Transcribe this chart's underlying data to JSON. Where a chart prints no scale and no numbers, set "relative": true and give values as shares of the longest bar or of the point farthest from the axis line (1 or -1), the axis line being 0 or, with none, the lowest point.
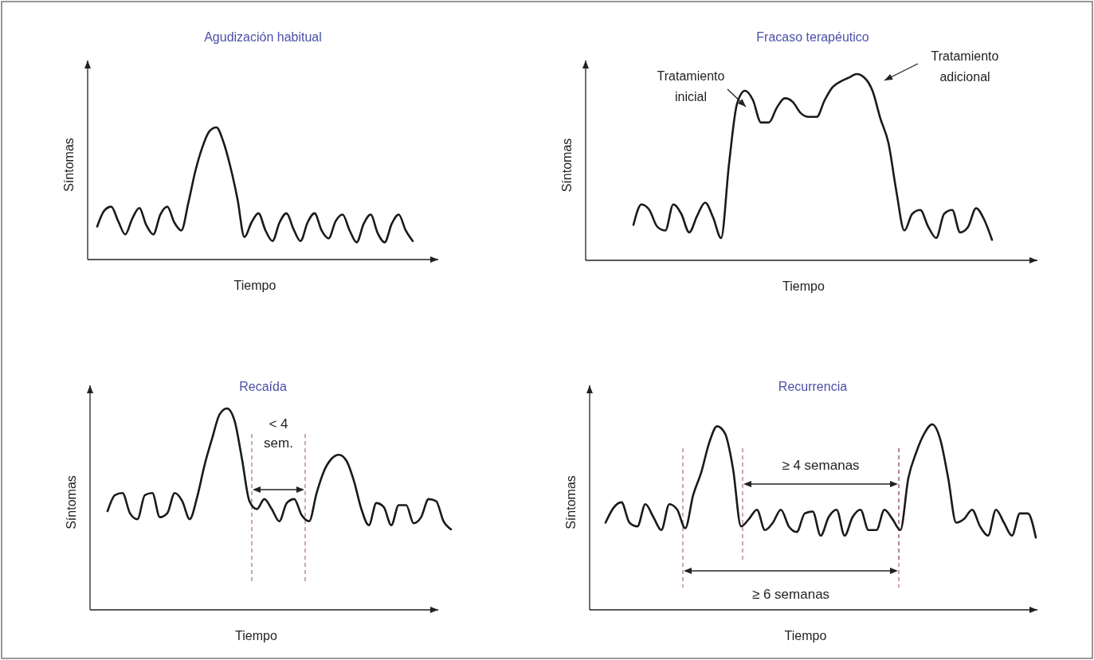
{
  "chart_data": [
    {
      "type": "line",
      "title": "Agudización habitual",
      "xlabel": "Tiempo",
      "ylabel": "Síntomas",
      "relative": true,
      "color": "#1a1a1a",
      "categories": [
        null,
        null,
        null,
        null,
        null,
        null,
        null,
        null,
        null,
        null,
        null,
        null,
        null,
        null,
        null,
        null,
        null,
        null,
        null,
        null,
        null,
        null,
        null,
        null,
        null,
        null,
        null,
        null,
        null,
        null,
        null,
        null,
        null,
        null,
        null,
        null,
        null,
        null,
        null,
        null,
        null,
        null,
        null,
        null,
        null,
        null
      ],
      "values": [
        0.25,
        0.37,
        0.4,
        0.29,
        0.19,
        0.31,
        0.39,
        0.26,
        0.19,
        0.34,
        0.4,
        0.28,
        0.22,
        0.43,
        0.67,
        0.85,
        0.97,
        1,
        0.89,
        0.7,
        0.46,
        0.17,
        0.28,
        0.35,
        0.22,
        0.14,
        0.28,
        0.35,
        0.23,
        0.14,
        0.28,
        0.35,
        0.22,
        0.16,
        0.29,
        0.34,
        0.22,
        0.13,
        0.27,
        0.34,
        0.2,
        0.13,
        0.27,
        0.34,
        0.22,
        0.14
      ]
    },
    {
      "type": "line",
      "title": "Fracaso terapéutico",
      "xlabel": "Tiempo",
      "ylabel": "Síntomas",
      "relative": true,
      "color": "#1a1a1a",
      "categories": [
        null,
        null,
        null,
        null,
        null,
        null,
        null,
        null,
        null,
        null,
        null,
        null,
        null,
        null,
        null,
        null,
        null,
        null,
        null,
        null,
        null,
        null,
        null,
        null,
        null,
        null,
        null,
        null,
        null,
        null,
        null,
        null,
        null,
        null,
        null,
        null,
        null,
        null,
        null,
        null,
        null,
        null,
        null,
        null,
        null,
        null
      ],
      "values": [
        0.19,
        0.3,
        0.27,
        0.18,
        0.16,
        0.3,
        0.25,
        0.15,
        0.24,
        0.31,
        0.23,
        0.12,
        0.52,
        0.84,
        0.91,
        0.86,
        0.74,
        0.74,
        0.82,
        0.87,
        0.85,
        0.79,
        0.77,
        0.77,
        0.86,
        0.93,
        0.96,
        0.98,
        1,
        0.98,
        0.91,
        0.76,
        0.63,
        0.37,
        0.16,
        0.25,
        0.27,
        0.18,
        0.12,
        0.25,
        0.27,
        0.15,
        0.18,
        0.28,
        0.22,
        0.11
      ],
      "annotations": [
        "Tratamiento inicial",
        "Tratamiento adicional"
      ]
    },
    {
      "type": "line",
      "title": "Recaída",
      "xlabel": "Tiempo",
      "ylabel": "Síntomas",
      "relative": true,
      "color": "#1a1a1a",
      "categories": [
        null,
        null,
        null,
        null,
        null,
        null,
        null,
        null,
        null,
        null,
        null,
        null,
        null,
        null,
        null,
        null,
        null,
        null,
        null,
        null,
        null,
        null,
        null,
        null,
        null,
        null,
        null,
        null,
        null,
        null,
        null,
        null,
        null,
        null,
        null,
        null,
        null,
        null,
        null,
        null,
        null,
        null,
        null,
        null,
        null,
        null,
        null
      ],
      "values": [
        0.49,
        0.57,
        0.58,
        0.48,
        0.45,
        0.57,
        0.58,
        0.46,
        0.48,
        0.58,
        0.54,
        0.45,
        0.56,
        0.72,
        0.85,
        0.97,
        1,
        0.94,
        0.75,
        0.54,
        0.5,
        0.55,
        0.5,
        0.44,
        0.53,
        0.55,
        0.47,
        0.44,
        0.58,
        0.69,
        0.75,
        0.77,
        0.74,
        0.64,
        0.5,
        0.42,
        0.53,
        0.51,
        0.42,
        0.52,
        0.52,
        0.43,
        0.46,
        0.55,
        0.54,
        0.44,
        0.4
      ],
      "annotations": [
        "< 4 sem."
      ]
    },
    {
      "type": "line",
      "title": "Recurrencia",
      "xlabel": "Tiempo",
      "ylabel": "Síntomas",
      "relative": true,
      "color": "#1a1a1a",
      "categories": [
        null,
        null,
        null,
        null,
        null,
        null,
        null,
        null,
        null,
        null,
        null,
        null,
        null,
        null,
        null,
        null,
        null,
        null,
        null,
        null,
        null,
        null,
        null,
        null,
        null,
        null,
        null,
        null,
        null,
        null,
        null,
        null,
        null,
        null,
        null,
        null,
        null,
        null,
        null,
        null,
        null,
        null,
        null,
        null,
        null,
        null,
        null,
        null,
        null,
        null,
        null,
        null,
        null,
        null,
        null
      ],
      "values": [
        0.47,
        0.55,
        0.58,
        0.47,
        0.45,
        0.57,
        0.5,
        0.43,
        0.57,
        0.54,
        0.44,
        0.62,
        0.74,
        0.9,
        0.99,
        0.95,
        0.76,
        0.45,
        0.49,
        0.54,
        0.43,
        0.47,
        0.54,
        0.45,
        0.42,
        0.52,
        0.53,
        0.4,
        0.5,
        0.54,
        0.4,
        0.5,
        0.54,
        0.43,
        0.43,
        0.54,
        0.49,
        0.43,
        0.71,
        0.85,
        0.95,
        1,
        0.92,
        0.71,
        0.47,
        0.49,
        0.54,
        0.45,
        0.4,
        0.54,
        0.47,
        0.4,
        0.52,
        0.52,
        0.39
      ],
      "annotations": [
        "≥ 4 semanas",
        "≥ 6 semanas"
      ]
    }
  ]
}
